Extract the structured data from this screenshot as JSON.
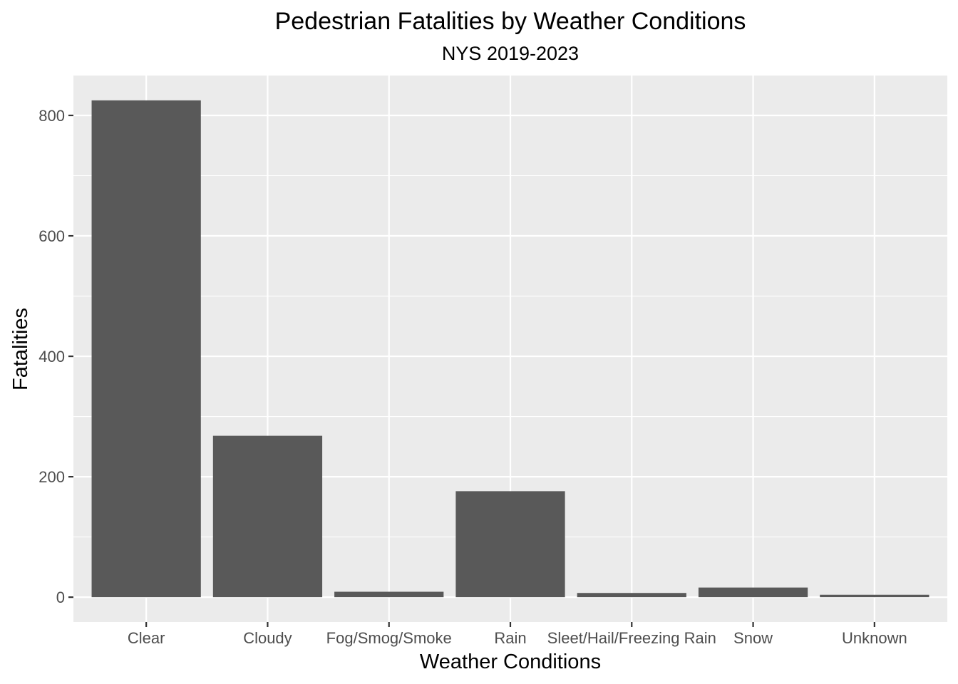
{
  "chart_data": {
    "type": "bar",
    "title": "Pedestrian Fatalities by Weather Conditions",
    "subtitle": "NYS 2019-2023",
    "xlabel": "Weather Conditions",
    "ylabel": "Fatalities",
    "categories": [
      "Clear",
      "Cloudy",
      "Fog/Smog/Smoke",
      "Rain",
      "Sleet/Hail/Freezing Rain",
      "Snow",
      "Unknown"
    ],
    "values": [
      825,
      268,
      9,
      176,
      7,
      16,
      4
    ],
    "ylim": [
      -41.25,
      866.25
    ],
    "yticks": [
      0,
      200,
      400,
      600,
      800
    ],
    "grid": true,
    "legend": "none",
    "colors": {
      "bar": "#595959",
      "panel": "#ebebeb",
      "grid": "#ffffff",
      "tick": "#333333"
    }
  }
}
